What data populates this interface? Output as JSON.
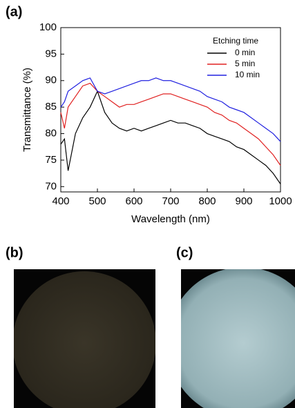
{
  "panel_labels": [
    "(a)",
    "(b)",
    "(c)"
  ],
  "chart_data": {
    "type": "line",
    "xlabel": "Wavelength (nm)",
    "ylabel": "Transmittance (%)",
    "legend_title": "Etching time",
    "legend": "upper right",
    "x": [
      400,
      410,
      420,
      440,
      460,
      480,
      500,
      520,
      540,
      560,
      580,
      600,
      620,
      640,
      660,
      680,
      700,
      720,
      740,
      760,
      780,
      800,
      820,
      840,
      860,
      880,
      900,
      920,
      940,
      960,
      980,
      1000
    ],
    "series": [
      {
        "name": "0 min",
        "color": "#000000",
        "values": [
          78,
          79,
          73,
          80,
          83,
          85,
          88,
          84,
          82,
          81,
          80.5,
          81,
          80.5,
          81,
          81.5,
          82,
          82.5,
          82,
          82,
          81.5,
          81,
          80,
          79.5,
          79,
          78.5,
          77.5,
          77,
          76,
          75,
          74,
          72.5,
          70.5
        ]
      },
      {
        "name": "5 min",
        "color": "#e02020",
        "values": [
          84,
          81,
          85,
          87,
          89,
          89.5,
          88,
          87,
          86,
          85,
          85.5,
          85.5,
          86,
          86.5,
          87,
          87.5,
          87.5,
          87,
          86.5,
          86,
          85.5,
          85,
          84,
          83.5,
          82.5,
          82,
          81,
          80,
          79,
          77.5,
          76,
          74
        ]
      },
      {
        "name": "10 min",
        "color": "#2020e0",
        "values": [
          85,
          86,
          88,
          89,
          90,
          90.5,
          88,
          87.5,
          88,
          88.5,
          89,
          89.5,
          90,
          90,
          90.5,
          90,
          90,
          89.5,
          89,
          88.5,
          88,
          87,
          86.5,
          86,
          85,
          84.5,
          84,
          83,
          82,
          81,
          80,
          78.5
        ]
      }
    ],
    "xlim": [
      400,
      1000
    ],
    "ylim": [
      69,
      100
    ],
    "xticks": [
      400,
      500,
      600,
      700,
      800,
      900,
      1000
    ],
    "yticks": [
      70,
      75,
      80,
      85,
      90,
      95,
      100
    ]
  }
}
